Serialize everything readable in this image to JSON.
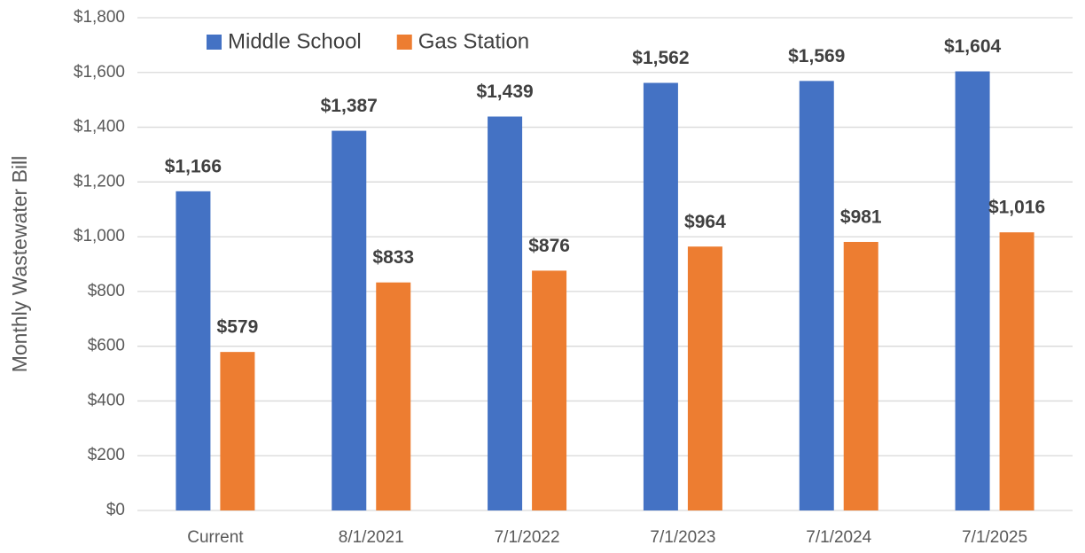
{
  "chart_data": {
    "type": "bar",
    "y_label": "Monthly Wastewater Bill",
    "categories": [
      "Current",
      "8/1/2021",
      "7/1/2022",
      "7/1/2023",
      "7/1/2024",
      "7/1/2025"
    ],
    "series": [
      {
        "name": "Middle School",
        "color": "#4472c4",
        "values": [
          1166,
          1387,
          1439,
          1562,
          1569,
          1604
        ],
        "value_labels": [
          "$1,166",
          "$1,387",
          "$1,439",
          "$1,562",
          "$1,569",
          "$1,604"
        ]
      },
      {
        "name": "Gas Station",
        "color": "#ed7d31",
        "values": [
          579,
          833,
          876,
          964,
          981,
          1016
        ],
        "value_labels": [
          "$579",
          "$833",
          "$876",
          "$964",
          "$981",
          "$1,016"
        ]
      }
    ],
    "ylim": [
      0,
      1800
    ],
    "yticks": [
      {
        "value": 0,
        "label": "$0"
      },
      {
        "value": 200,
        "label": "$200"
      },
      {
        "value": 400,
        "label": "$400"
      },
      {
        "value": 600,
        "label": "$600"
      },
      {
        "value": 800,
        "label": "$800"
      },
      {
        "value": 1000,
        "label": "$1,000"
      },
      {
        "value": 1200,
        "label": "$1,200"
      },
      {
        "value": 1400,
        "label": "$1,400"
      },
      {
        "value": 1600,
        "label": "$1,600"
      },
      {
        "value": 1800,
        "label": "$1,800"
      }
    ],
    "grid": true,
    "legend_position": "top-left"
  }
}
